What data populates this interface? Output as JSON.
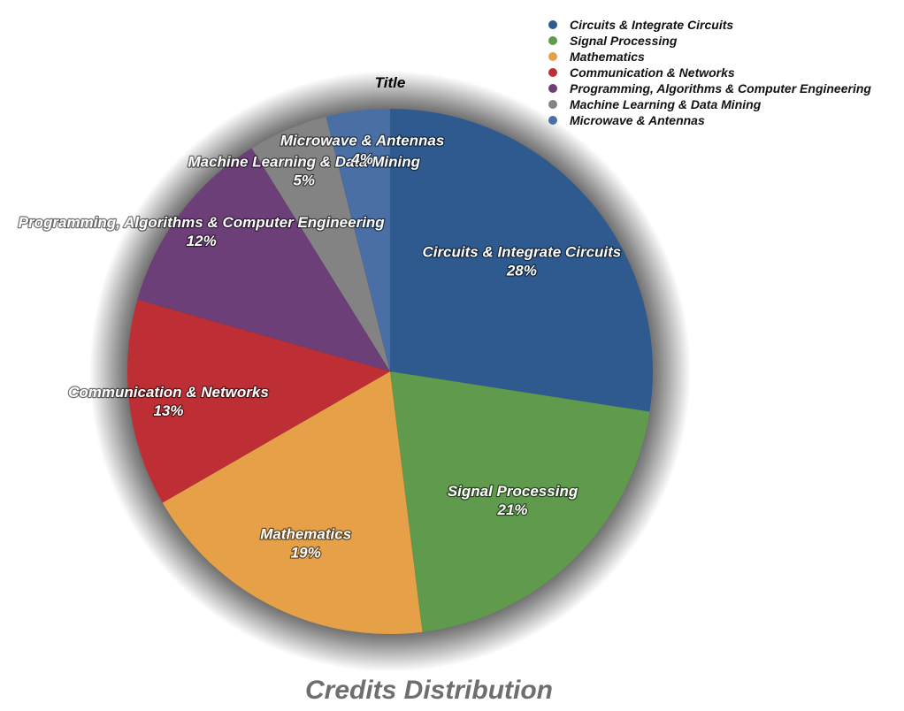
{
  "chart_data": {
    "type": "pie",
    "title": "Title",
    "caption": "Credits Distribution",
    "legend_placement": "top-right",
    "slices": [
      {
        "label": "Circuits & Integrate Circuits",
        "value": 28,
        "value_label": "28%",
        "color": "#2f5a8f"
      },
      {
        "label": "Signal Processing",
        "value": 21,
        "value_label": "21%",
        "color": "#5f9a4d"
      },
      {
        "label": "Mathematics",
        "value": 19,
        "value_label": "19%",
        "color": "#e6a148"
      },
      {
        "label": "Communication & Networks",
        "value": 13,
        "value_label": "13%",
        "color": "#bd2f35"
      },
      {
        "label": "Programming, Algorithms & Computer Engineering",
        "value": 12,
        "value_label": "12%",
        "color": "#6c3f78"
      },
      {
        "label": "Machine Learning & Data Mining",
        "value": 5,
        "value_label": "5%",
        "color": "#838383"
      },
      {
        "label": "Microwave & Antennas",
        "value": 4,
        "value_label": "4%",
        "color": "#4a6fa4"
      }
    ]
  }
}
